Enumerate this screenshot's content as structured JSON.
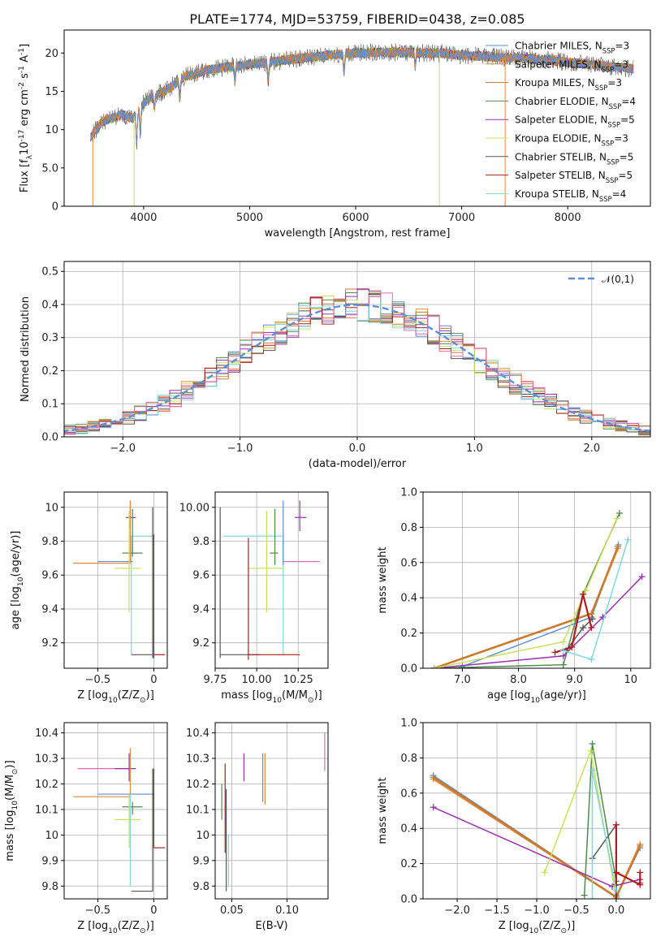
{
  "figure": {
    "title": "PLATE=1774, MJD=53759, FIBERID=0438, z=0.085"
  },
  "palette": {
    "Chabrier MILES": "#5b8fd6",
    "Salpeter MILES": "#e48a3a",
    "Kroupa MILES": "#c97a2d",
    "Chabrier ELODIE": "#4f8a4f",
    "Salpeter ELODIE": "#9b30b0",
    "Kroupa ELODIE": "#c8e05a",
    "Chabrier STELIB": "#555555",
    "Salpeter STELIB": "#b01c1c",
    "Kroupa STELIB": "#7fd8e0",
    "extra": "#e06aa8"
  },
  "chart_data": [
    {
      "id": "spectrum",
      "type": "line",
      "xlabel": "wavelength [Angstrom, rest frame]",
      "ylabel": "Flux [f$_\\lambda$10$^{-17}$ erg cm$^{-2}$ s$^{-1}$ A$^{-1}$]",
      "xlim": [
        3250,
        8780
      ],
      "ylim": [
        0,
        23
      ],
      "xticks": [
        4000,
        5000,
        6000,
        7000,
        8000
      ],
      "yticks": [
        0,
        5,
        10,
        15,
        20
      ],
      "grid": false,
      "legend_position": "right",
      "envelope": {
        "x": [
          3500,
          3600,
          3700,
          3800,
          3900,
          4000,
          4100,
          4200,
          4300,
          4400,
          4500,
          4600,
          4700,
          4800,
          4900,
          5000,
          5200,
          5400,
          5600,
          5800,
          6000,
          6200,
          6400,
          6600,
          6800,
          7000,
          7200,
          7400,
          7600,
          7800,
          8000,
          8200,
          8400,
          8600
        ],
        "y": [
          9.0,
          11.0,
          11.5,
          12.0,
          11.5,
          13.5,
          14.5,
          15.0,
          16.0,
          17.0,
          17.3,
          17.8,
          18.0,
          18.2,
          18.3,
          18.5,
          18.8,
          19.2,
          19.5,
          19.8,
          20.0,
          20.1,
          20.1,
          20.0,
          20.0,
          19.7,
          19.6,
          19.4,
          19.3,
          19.1,
          18.8,
          18.5,
          18.2,
          18.0
        ]
      },
      "series": [
        {
          "name": "Chabrier MILES, N$_{SSP}$=3",
          "key": "Chabrier MILES"
        },
        {
          "name": "Salpeter MILES, N$_{SSP}$=3",
          "key": "Salpeter MILES"
        },
        {
          "name": "Kroupa MILES, N$_{SSP}$=3",
          "key": "Kroupa MILES"
        },
        {
          "name": "Chabrier ELODIE, N$_{SSP}$=4",
          "key": "Chabrier ELODIE"
        },
        {
          "name": "Salpeter ELODIE, N$_{SSP}$=5",
          "key": "Salpeter ELODIE"
        },
        {
          "name": "Kroupa ELODIE, N$_{SSP}$=3",
          "key": "Kroupa ELODIE"
        },
        {
          "name": "Chabrier STELIB, N$_{SSP}$=5",
          "key": "Chabrier STELIB"
        },
        {
          "name": "Salpeter STELIB, N$_{SSP}$=5",
          "key": "Salpeter STELIB"
        },
        {
          "name": "Kroupa STELIB, N$_{SSP}$=4",
          "key": "Kroupa STELIB"
        }
      ]
    },
    {
      "id": "residuals",
      "type": "line",
      "xlabel": "(data-model)/error",
      "ylabel": "Normed distribution",
      "xlim": [
        -2.5,
        2.5
      ],
      "ylim": [
        0,
        0.53
      ],
      "xticks": [
        -2,
        -1,
        0,
        1,
        2
      ],
      "yticks": [
        0.0,
        0.1,
        0.2,
        0.3,
        0.4,
        0.5
      ],
      "grid": true,
      "legend_position": "top-right",
      "legend": "$\\mathcal{N}(0,1)$",
      "bin_width": 0.1,
      "gaussian": {
        "mean": 0,
        "sigma": 1
      }
    },
    {
      "id": "age_vs_Z",
      "type": "scatter",
      "xlabel": "Z [log$_{10}$(Z/Z$_\\odot$)]",
      "ylabel": "age  [log$_{10}$(age/yr)]",
      "xlim": [
        -0.8,
        0.12
      ],
      "ylim": [
        9.05,
        10.09
      ],
      "xticks": [
        -0.5,
        0.0
      ],
      "yticks": [
        9.2,
        9.4,
        9.6,
        9.8,
        10.0
      ],
      "grid": true,
      "points": [
        {
          "x": -0.21,
          "y": 9.94,
          "xl": -0.25,
          "xr": -0.16,
          "yd": 9.88,
          "yu": 10.04,
          "key": "Salpeter ELODIE"
        },
        {
          "x": -0.2,
          "y": 9.83,
          "xl": -0.21,
          "xr": 0.0,
          "yd": 9.13,
          "yu": 9.83,
          "key": "Kroupa STELIB"
        },
        {
          "x": -0.19,
          "y": 9.73,
          "xl": -0.28,
          "xr": -0.1,
          "yd": 9.71,
          "yu": 9.99,
          "key": "Chabrier ELODIE"
        },
        {
          "x": -0.19,
          "y": 9.68,
          "xl": -0.5,
          "xr": -0.19,
          "yd": 9.68,
          "yu": 9.68,
          "key": "Chabrier MILES"
        },
        {
          "x": -0.21,
          "y": 9.67,
          "xl": -0.72,
          "xr": -0.21,
          "yd": 9.67,
          "yu": 10.04,
          "key": "Salpeter MILES"
        },
        {
          "x": -0.22,
          "y": 9.64,
          "xl": -0.35,
          "xr": -0.12,
          "yd": 9.38,
          "yu": 9.98,
          "key": "Kroupa ELODIE"
        },
        {
          "x": -0.01,
          "y": 9.13,
          "xl": -0.2,
          "xr": -0.01,
          "yd": 9.11,
          "yu": 10.0,
          "key": "Chabrier STELIB"
        },
        {
          "x": 0.0,
          "y": 9.13,
          "xl": 0.0,
          "xr": 0.1,
          "yd": 9.11,
          "yu": 9.84,
          "key": "Salpeter STELIB"
        }
      ]
    },
    {
      "id": "age_vs_mass",
      "type": "scatter",
      "xlabel": "mass [log$_{10}$(M/M$_\\odot$)]",
      "ylabel": "",
      "xlim": [
        9.75,
        10.43
      ],
      "ylim": [
        9.05,
        10.09
      ],
      "xticks": [
        9.75,
        10.0,
        10.25
      ],
      "yticks": [
        9.2,
        9.4,
        9.6,
        9.8,
        10.0
      ],
      "grid": true,
      "points": [
        {
          "x": 10.26,
          "y": 9.94,
          "xl": 10.23,
          "xr": 10.3,
          "yd": 9.86,
          "yu": 10.04,
          "key": "Salpeter ELODIE"
        },
        {
          "x": 10.16,
          "y": 9.83,
          "xl": 9.8,
          "xr": 10.16,
          "yd": 9.13,
          "yu": 9.83,
          "key": "Kroupa STELIB"
        },
        {
          "x": 10.11,
          "y": 9.73,
          "xl": 10.08,
          "xr": 10.13,
          "yd": 9.66,
          "yu": 9.99,
          "key": "Chabrier ELODIE"
        },
        {
          "x": 10.16,
          "y": 9.68,
          "xl": 10.16,
          "xr": 10.3,
          "yd": 9.66,
          "yu": 10.04,
          "key": "Chabrier MILES"
        },
        {
          "x": 10.16,
          "y": 9.68,
          "xl": 10.16,
          "xr": 10.38,
          "yd": 9.68,
          "yu": 9.68,
          "key": "Extra"
        },
        {
          "x": 10.06,
          "y": 9.64,
          "xl": 9.95,
          "xr": 10.16,
          "yd": 9.38,
          "yu": 9.98,
          "key": "Kroupa ELODIE"
        },
        {
          "x": 9.78,
          "y": 9.13,
          "xl": 9.78,
          "xr": 10.02,
          "yd": 9.11,
          "yu": 10.0,
          "key": "Chabrier STELIB"
        },
        {
          "x": 9.95,
          "y": 9.13,
          "xl": 9.95,
          "xr": 10.26,
          "yd": 9.1,
          "yu": 9.82,
          "key": "Salpeter STELIB"
        }
      ]
    },
    {
      "id": "weight_vs_age",
      "type": "line",
      "xlabel": "age  [log$_{10}$(age/yr)]",
      "ylabel": "mass weight",
      "xlim": [
        6.3,
        10.35
      ],
      "ylim": [
        0,
        1
      ],
      "xticks": [
        7,
        8,
        9,
        10
      ],
      "yticks": [
        0.0,
        0.2,
        0.4,
        0.6,
        0.8,
        1.0
      ],
      "grid": true,
      "series": [
        {
          "key": "Chabrier MILES",
          "x": [
            7.0,
            9.3,
            9.78
          ],
          "y": [
            0.01,
            0.29,
            0.7
          ]
        },
        {
          "key": "Salpeter MILES",
          "x": [
            6.5,
            9.3,
            9.77
          ],
          "y": [
            0.0,
            0.31,
            0.68
          ]
        },
        {
          "key": "Kroupa MILES",
          "x": [
            6.5,
            9.3,
            9.77
          ],
          "y": [
            0.0,
            0.31,
            0.69
          ]
        },
        {
          "key": "Chabrier ELODIE",
          "x": [
            6.5,
            8.8,
            9.15,
            9.8
          ],
          "y": [
            0.0,
            0.02,
            0.42,
            0.88
          ]
        },
        {
          "key": "Salpeter ELODIE",
          "x": [
            6.5,
            8.8,
            9.5,
            10.2
          ],
          "y": [
            0.0,
            0.07,
            0.29,
            0.52
          ]
        },
        {
          "key": "Kroupa ELODIE",
          "x": [
            6.5,
            8.8,
            9.2,
            9.75
          ],
          "y": [
            0.0,
            0.15,
            0.44,
            0.85
          ]
        },
        {
          "key": "Chabrier STELIB",
          "x": [
            8.85,
            9.15,
            9.32
          ],
          "y": [
            0.1,
            0.23,
            0.28
          ]
        },
        {
          "key": "Salpeter STELIB",
          "x": [
            8.65,
            8.95,
            9.15,
            9.3
          ],
          "y": [
            0.09,
            0.12,
            0.42,
            0.23
          ]
        },
        {
          "key": "Kroupa STELIB",
          "x": [
            8.8,
            9.3,
            9.95
          ],
          "y": [
            0.1,
            0.05,
            0.73
          ]
        }
      ]
    },
    {
      "id": "mass_vs_Z",
      "type": "scatter",
      "xlabel": "Z [log$_{10}$(Z/Z$_\\odot$)]",
      "ylabel": "mass [log$_{10}$(M/M$_\\odot$)]",
      "xlim": [
        -0.8,
        0.12
      ],
      "ylim": [
        9.75,
        10.44
      ],
      "xticks": [
        -0.5,
        0.0
      ],
      "yticks": [
        9.8,
        9.9,
        10.0,
        10.1,
        10.2,
        10.3,
        10.4
      ],
      "grid": true,
      "points": [
        {
          "x": -0.21,
          "y": 10.26,
          "xl": -0.68,
          "xr": -0.21,
          "yd": 10.26,
          "yu": 10.26,
          "key": "Extra"
        },
        {
          "x": -0.22,
          "y": 10.26,
          "xl": -0.35,
          "xr": -0.16,
          "yd": 10.21,
          "yu": 10.32,
          "key": "Salpeter ELODIE"
        },
        {
          "x": -0.2,
          "y": 10.16,
          "xl": -0.5,
          "xr": 0.0,
          "yd": 10.16,
          "yu": 10.16,
          "key": "Chabrier MILES"
        },
        {
          "x": -0.21,
          "y": 10.15,
          "xl": -0.72,
          "xr": -0.21,
          "yd": 10.15,
          "yu": 10.34,
          "key": "Salpeter MILES"
        },
        {
          "x": -0.19,
          "y": 10.11,
          "xl": -0.28,
          "xr": -0.1,
          "yd": 10.08,
          "yu": 10.13,
          "key": "Chabrier ELODIE"
        },
        {
          "x": -0.22,
          "y": 10.06,
          "xl": -0.35,
          "xr": -0.12,
          "yd": 9.95,
          "yu": 10.16,
          "key": "Kroupa ELODIE"
        },
        {
          "x": -0.21,
          "y": 10.16,
          "xl": -0.21,
          "xr": -0.21,
          "yd": 9.8,
          "yu": 10.16,
          "key": "Kroupa STELIB"
        },
        {
          "x": -0.01,
          "y": 9.78,
          "xl": -0.2,
          "xr": -0.01,
          "yd": 9.78,
          "yu": 10.26,
          "key": "Chabrier STELIB"
        },
        {
          "x": 0.0,
          "y": 9.95,
          "xl": 0.0,
          "xr": 0.1,
          "yd": 9.95,
          "yu": 10.26,
          "key": "Salpeter STELIB"
        }
      ]
    },
    {
      "id": "mass_vs_ebv",
      "type": "scatter",
      "xlabel": "E(B-V)",
      "ylabel": "",
      "xlim": [
        0.035,
        0.137
      ],
      "ylim": [
        9.75,
        10.44
      ],
      "xticks": [
        0.05,
        0.1
      ],
      "yticks": [
        9.8,
        9.9,
        10.0,
        10.1,
        10.2,
        10.3,
        10.4
      ],
      "grid": true,
      "bars": [
        {
          "x": 0.041,
          "lo": 10.06,
          "hi": 10.2,
          "key": "Chabrier ELODIE"
        },
        {
          "x": 0.044,
          "lo": 9.93,
          "hi": 10.28,
          "key": "Salpeter STELIB"
        },
        {
          "x": 0.045,
          "lo": 9.78,
          "hi": 10.18,
          "key": "Chabrier STELIB"
        },
        {
          "x": 0.047,
          "lo": 9.8,
          "hi": 10.0,
          "key": "Kroupa STELIB"
        },
        {
          "x": 0.061,
          "lo": 10.21,
          "hi": 10.32,
          "key": "Salpeter ELODIE"
        },
        {
          "x": 0.078,
          "lo": 10.13,
          "hi": 10.32,
          "key": "Chabrier MILES"
        },
        {
          "x": 0.08,
          "lo": 10.12,
          "hi": 10.32,
          "key": "Salpeter MILES"
        },
        {
          "x": 0.134,
          "lo": 10.25,
          "hi": 10.4,
          "key": "Extra"
        }
      ]
    },
    {
      "id": "weight_vs_Z",
      "type": "line",
      "xlabel": "Z [log$_{10}$(Z/Z$_\\odot$)]",
      "ylabel": "mass weight",
      "xlim": [
        -2.43,
        0.43
      ],
      "ylim": [
        0,
        1
      ],
      "xticks": [
        -2.0,
        -1.5,
        -1.0,
        -0.5,
        0.0
      ],
      "yticks": [
        0.0,
        0.2,
        0.4,
        0.6,
        0.8,
        1.0
      ],
      "grid": true,
      "series": [
        {
          "key": "Chabrier MILES",
          "x": [
            -2.3,
            0.0,
            0.3
          ],
          "y": [
            0.7,
            0.01,
            0.29
          ]
        },
        {
          "key": "Salpeter MILES",
          "x": [
            -2.3,
            0.0,
            0.3
          ],
          "y": [
            0.68,
            0.01,
            0.31
          ]
        },
        {
          "key": "Kroupa MILES",
          "x": [
            -2.3,
            0.0,
            0.3
          ],
          "y": [
            0.69,
            0.01,
            0.3
          ]
        },
        {
          "key": "Chabrier ELODIE",
          "x": [
            -0.4,
            -0.3,
            0.0,
            0.0
          ],
          "y": [
            0.02,
            0.88,
            0.1,
            0.02
          ]
        },
        {
          "key": "Salpeter ELODIE",
          "x": [
            -2.3,
            -0.05,
            0.3,
            0.3
          ],
          "y": [
            0.52,
            0.07,
            0.11,
            0.09
          ]
        },
        {
          "key": "Kroupa ELODIE",
          "x": [
            -0.9,
            -0.32,
            0.0
          ],
          "y": [
            0.15,
            0.84,
            0.0
          ]
        },
        {
          "key": "Chabrier STELIB",
          "x": [
            -0.3,
            0.0,
            0.0
          ],
          "y": [
            0.23,
            0.42,
            0.08
          ]
        },
        {
          "key": "Salpeter STELIB",
          "x": [
            0.0,
            0.0,
            0.0,
            0.3,
            0.3
          ],
          "y": [
            0.0,
            0.42,
            0.15,
            0.08,
            0.15
          ]
        },
        {
          "key": "Kroupa STELIB",
          "x": [
            -0.3,
            -0.3,
            0.0
          ],
          "y": [
            0.0,
            0.73,
            0.05
          ]
        }
      ]
    }
  ]
}
